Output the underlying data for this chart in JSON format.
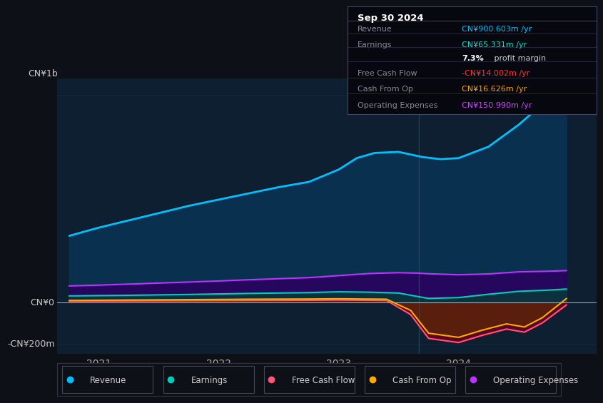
{
  "bg_color": "#0d1117",
  "plot_bg_color": "#0d1f30",
  "title_box_bg": "#0a0a0f",
  "title_box": {
    "date": "Sep 30 2024",
    "rows": [
      {
        "label": "Revenue",
        "value": "CN¥900.603m /yr",
        "value_color": "#00bfff"
      },
      {
        "label": "Earnings",
        "value": "CN¥65.331m /yr",
        "value_color": "#00e5cc"
      },
      {
        "label": "",
        "value": "7.3% profit margin",
        "value_color": "#ffffff"
      },
      {
        "label": "Free Cash Flow",
        "value": "-CN¥14.002m /yr",
        "value_color": "#ff3333"
      },
      {
        "label": "Cash From Op",
        "value": "CN¥16.626m /yr",
        "value_color": "#ffa500"
      },
      {
        "label": "Operating Expenses",
        "value": "CN¥150.990m /yr",
        "value_color": "#cc44ff"
      }
    ]
  },
  "ylabel_top": "CN¥1b",
  "ylabel_zero": "CN¥0",
  "ylabel_neg": "-CN¥200m",
  "ylim": [
    -250,
    1080
  ],
  "xlim_start": 2020.65,
  "xlim_end": 2025.15,
  "xtick_labels": [
    "2021",
    "2022",
    "2023",
    "2024"
  ],
  "xtick_positions": [
    2021,
    2022,
    2023,
    2024
  ],
  "series": {
    "revenue": {
      "color": "#00bfff",
      "fill_color": "#0a3555",
      "x": [
        2020.75,
        2021.0,
        2021.25,
        2021.5,
        2021.75,
        2022.0,
        2022.25,
        2022.5,
        2022.75,
        2023.0,
        2023.15,
        2023.3,
        2023.5,
        2023.7,
        2023.85,
        2024.0,
        2024.25,
        2024.5,
        2024.65,
        2024.75,
        2024.9
      ],
      "y": [
        320,
        360,
        395,
        430,
        465,
        495,
        525,
        555,
        580,
        640,
        695,
        720,
        725,
        700,
        690,
        695,
        750,
        855,
        930,
        960,
        920
      ]
    },
    "earnings": {
      "color": "#00ccbb",
      "fill_color": "#005544",
      "x": [
        2020.75,
        2021.25,
        2021.75,
        2022.25,
        2022.75,
        2023.0,
        2023.25,
        2023.5,
        2023.65,
        2023.75,
        2024.0,
        2024.25,
        2024.5,
        2024.75,
        2024.9
      ],
      "y": [
        30,
        33,
        37,
        42,
        46,
        50,
        48,
        44,
        28,
        18,
        22,
        38,
        52,
        58,
        63
      ]
    },
    "free_cash_flow": {
      "color": "#ff5577",
      "fill_color": "#7a0020",
      "x": [
        2020.75,
        2021.25,
        2021.75,
        2022.25,
        2022.75,
        2023.0,
        2023.4,
        2023.6,
        2023.75,
        2024.0,
        2024.2,
        2024.4,
        2024.55,
        2024.7,
        2024.9
      ],
      "y": [
        5,
        6,
        7,
        8,
        9,
        10,
        8,
        -60,
        -175,
        -195,
        -160,
        -130,
        -145,
        -100,
        -14
      ]
    },
    "cash_from_op": {
      "color": "#ffaa00",
      "fill_color": "#7a4400",
      "x": [
        2020.75,
        2021.25,
        2021.75,
        2022.25,
        2022.75,
        2023.0,
        2023.4,
        2023.6,
        2023.75,
        2024.0,
        2024.2,
        2024.4,
        2024.55,
        2024.7,
        2024.9
      ],
      "y": [
        8,
        10,
        12,
        14,
        15,
        16,
        14,
        -40,
        -150,
        -170,
        -135,
        -105,
        -120,
        -75,
        17
      ]
    },
    "operating_expenses": {
      "color": "#bb33ff",
      "fill_color": "#440088",
      "x": [
        2020.75,
        2021.0,
        2021.25,
        2021.5,
        2021.75,
        2022.0,
        2022.25,
        2022.5,
        2022.75,
        2023.0,
        2023.25,
        2023.5,
        2023.65,
        2023.75,
        2024.0,
        2024.25,
        2024.5,
        2024.75,
        2024.9
      ],
      "y": [
        78,
        82,
        87,
        92,
        97,
        102,
        108,
        113,
        118,
        128,
        138,
        142,
        140,
        137,
        132,
        136,
        146,
        149,
        152
      ]
    }
  },
  "legend_items": [
    {
      "label": "Revenue",
      "color": "#00bfff"
    },
    {
      "label": "Earnings",
      "color": "#00ccbb"
    },
    {
      "label": "Free Cash Flow",
      "color": "#ff5577"
    },
    {
      "label": "Cash From Op",
      "color": "#ffaa00"
    },
    {
      "label": "Operating Expenses",
      "color": "#bb33ff"
    }
  ],
  "vline_x": 2023.67
}
